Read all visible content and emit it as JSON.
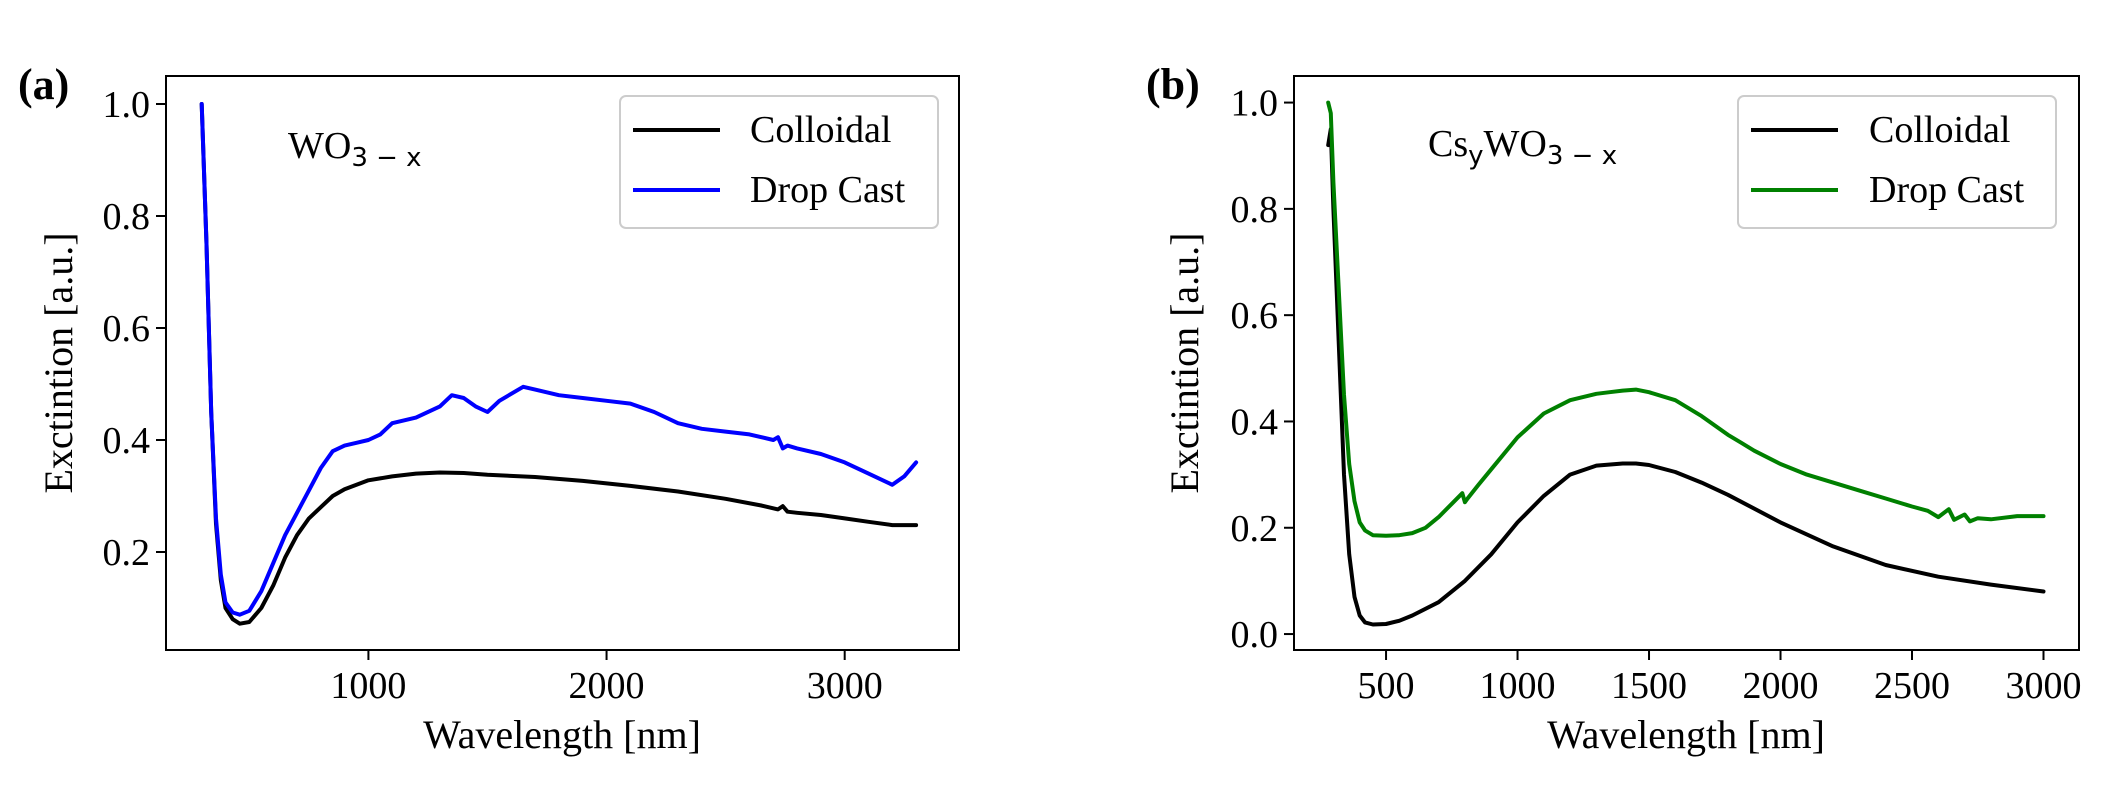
{
  "chart_data": [
    {
      "type": "line",
      "panel_label": "(a)",
      "annotation": {
        "base": "WO",
        "sub": "3 − x"
      },
      "xlabel": "Wavelength [nm]",
      "ylabel": "Exctintion [a.u.]",
      "xlim": [
        150,
        3480
      ],
      "ylim": [
        0.025,
        1.05
      ],
      "xticks": [
        1000,
        2000,
        3000
      ],
      "xtick_labels": [
        "1000",
        "2000",
        "3000"
      ],
      "yticks": [
        0.2,
        0.4,
        0.6,
        0.8,
        1.0
      ],
      "ytick_labels": [
        "0.2",
        "0.4",
        "0.6",
        "0.8",
        "1.0"
      ],
      "legend_position": "top-right",
      "series": [
        {
          "name": "Colloidal",
          "color": "#000000",
          "x": [
            300,
            320,
            340,
            360,
            380,
            400,
            430,
            460,
            500,
            550,
            600,
            650,
            700,
            750,
            800,
            850,
            900,
            1000,
            1100,
            1200,
            1300,
            1400,
            1500,
            1700,
            1900,
            2100,
            2300,
            2500,
            2650,
            2720,
            2740,
            2760,
            2800,
            2900,
            3000,
            3100,
            3200,
            3300
          ],
          "y": [
            1.0,
            0.75,
            0.45,
            0.25,
            0.15,
            0.1,
            0.08,
            0.072,
            0.075,
            0.1,
            0.14,
            0.19,
            0.23,
            0.26,
            0.28,
            0.3,
            0.312,
            0.328,
            0.335,
            0.34,
            0.342,
            0.341,
            0.338,
            0.334,
            0.327,
            0.318,
            0.308,
            0.295,
            0.283,
            0.276,
            0.282,
            0.272,
            0.27,
            0.266,
            0.26,
            0.254,
            0.248,
            0.248
          ]
        },
        {
          "name": "Drop Cast",
          "color": "#0000ff",
          "x": [
            300,
            320,
            340,
            360,
            380,
            400,
            430,
            460,
            500,
            550,
            600,
            650,
            700,
            750,
            800,
            850,
            900,
            950,
            1000,
            1050,
            1100,
            1200,
            1300,
            1350,
            1400,
            1450,
            1500,
            1550,
            1650,
            1700,
            1800,
            1900,
            2000,
            2100,
            2200,
            2300,
            2400,
            2500,
            2600,
            2700,
            2720,
            2740,
            2760,
            2800,
            2900,
            3000,
            3100,
            3200,
            3250,
            3300
          ],
          "y": [
            1.0,
            0.75,
            0.45,
            0.26,
            0.16,
            0.11,
            0.092,
            0.088,
            0.095,
            0.13,
            0.18,
            0.23,
            0.27,
            0.31,
            0.35,
            0.38,
            0.39,
            0.395,
            0.4,
            0.41,
            0.43,
            0.44,
            0.46,
            0.48,
            0.475,
            0.46,
            0.45,
            0.47,
            0.495,
            0.49,
            0.48,
            0.475,
            0.47,
            0.465,
            0.45,
            0.43,
            0.42,
            0.415,
            0.41,
            0.4,
            0.405,
            0.385,
            0.39,
            0.385,
            0.375,
            0.36,
            0.34,
            0.32,
            0.335,
            0.36
          ]
        }
      ]
    },
    {
      "type": "line",
      "panel_label": "(b)",
      "annotation": {
        "base_pre": "Cs",
        "sub_pre": "y",
        "base": "WO",
        "sub": "3 − x"
      },
      "xlabel": "Wavelength [nm]",
      "ylabel": "Exctintion [a.u.]",
      "xlim": [
        150,
        3135
      ],
      "ylim": [
        -0.03,
        1.05
      ],
      "xticks": [
        500,
        1000,
        1500,
        2000,
        2500,
        3000
      ],
      "xtick_labels": [
        "500",
        "1000",
        "1500",
        "2000",
        "2500",
        "3000"
      ],
      "yticks": [
        0.0,
        0.2,
        0.4,
        0.6,
        0.8,
        1.0
      ],
      "ytick_labels": [
        "0.0",
        "0.2",
        "0.4",
        "0.6",
        "0.8",
        "1.0"
      ],
      "legend_position": "top-right",
      "series": [
        {
          "name": "Colloidal",
          "color": "#000000",
          "x": [
            280,
            290,
            300,
            320,
            340,
            360,
            380,
            400,
            420,
            450,
            500,
            550,
            600,
            700,
            800,
            900,
            1000,
            1100,
            1200,
            1300,
            1400,
            1450,
            1500,
            1600,
            1700,
            1800,
            2000,
            2200,
            2400,
            2600,
            2800,
            3000
          ],
          "y": [
            0.92,
            0.95,
            0.8,
            0.55,
            0.3,
            0.15,
            0.07,
            0.035,
            0.022,
            0.018,
            0.019,
            0.025,
            0.035,
            0.06,
            0.1,
            0.15,
            0.21,
            0.26,
            0.3,
            0.317,
            0.321,
            0.321,
            0.318,
            0.305,
            0.285,
            0.262,
            0.21,
            0.165,
            0.13,
            0.108,
            0.093,
            0.08
          ]
        },
        {
          "name": "Drop Cast",
          "color": "#008000",
          "x": [
            280,
            290,
            300,
            320,
            340,
            360,
            380,
            400,
            420,
            450,
            500,
            550,
            600,
            650,
            700,
            750,
            790,
            800,
            810,
            850,
            900,
            1000,
            1100,
            1200,
            1300,
            1350,
            1400,
            1450,
            1500,
            1600,
            1700,
            1800,
            1850,
            1900,
            2000,
            2100,
            2200,
            2300,
            2400,
            2500,
            2560,
            2600,
            2640,
            2660,
            2700,
            2720,
            2750,
            2800,
            2900,
            3000
          ],
          "y": [
            1.0,
            0.98,
            0.85,
            0.65,
            0.45,
            0.32,
            0.25,
            0.21,
            0.195,
            0.186,
            0.185,
            0.186,
            0.19,
            0.2,
            0.22,
            0.245,
            0.265,
            0.248,
            0.255,
            0.28,
            0.31,
            0.37,
            0.415,
            0.44,
            0.452,
            0.455,
            0.458,
            0.46,
            0.455,
            0.44,
            0.41,
            0.375,
            0.36,
            0.345,
            0.32,
            0.3,
            0.285,
            0.27,
            0.255,
            0.24,
            0.232,
            0.22,
            0.235,
            0.215,
            0.225,
            0.212,
            0.218,
            0.216,
            0.222,
            0.222
          ]
        }
      ]
    }
  ]
}
